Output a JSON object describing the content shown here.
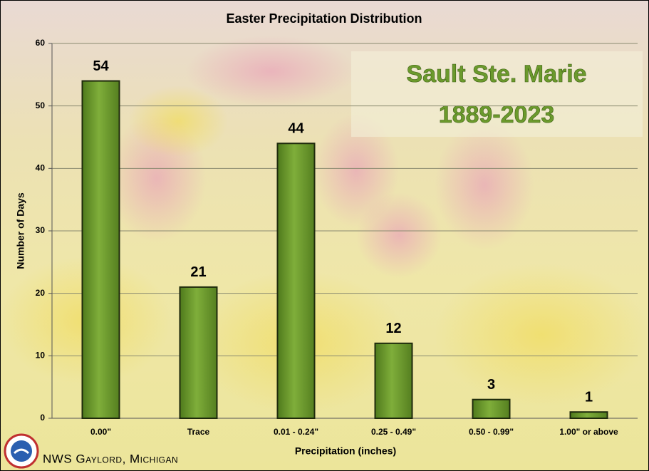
{
  "chart_data": {
    "type": "bar",
    "title": "Easter Precipitation Distribution",
    "annotation": [
      "Sault Ste. Marie",
      "1889-2023"
    ],
    "footer": "NWS Gaylord, Michigan",
    "x_label": "Precipitation (inches)",
    "y_label": "Number of Days",
    "categories": [
      "0.00\"",
      "Trace",
      "0.01 - 0.24\"",
      "0.25 - 0.49\"",
      "0.50 - 0.99\"",
      "1.00\" or above"
    ],
    "values": [
      54,
      21,
      44,
      12,
      3,
      1
    ],
    "color": "#6f9a2e",
    "ylim": [
      0,
      60
    ],
    "yticks": [
      0,
      10,
      20,
      30,
      40,
      50,
      60
    ],
    "grid": true
  }
}
